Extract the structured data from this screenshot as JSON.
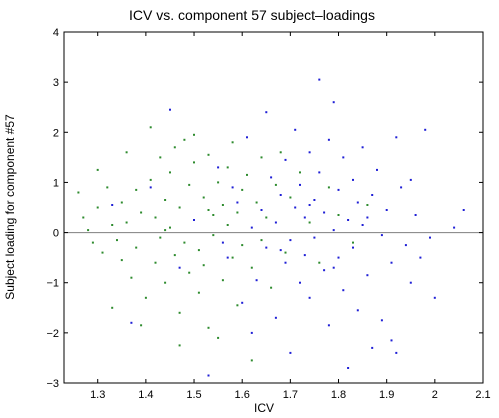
{
  "chart_data": {
    "type": "scatter",
    "title": "ICV vs. component 57 subject–loadings",
    "xlabel": "ICV",
    "ylabel": "Subject loading for component #57",
    "xlim": [
      1.23,
      2.1
    ],
    "ylim": [
      -3,
      4
    ],
    "xticks": [
      1.3,
      1.4,
      1.5,
      1.6,
      1.7,
      1.8,
      1.9,
      2.0,
      2.1
    ],
    "xtick_labels": [
      "1.3",
      "1.4",
      "1.5",
      "1.6",
      "1.7",
      "1.8",
      "1.9",
      "2",
      "2.1"
    ],
    "yticks": [
      -3,
      -2,
      -1,
      0,
      1,
      2,
      3,
      4
    ],
    "ytick_labels": [
      "−3",
      "−2",
      "−1",
      "0",
      "1",
      "2",
      "3",
      "4"
    ],
    "reference_line_y": 0,
    "grid": false,
    "colors": {
      "series_a": "#2e8b2e",
      "series_b": "#1f1fd6",
      "reference_line": "#7f7f7f",
      "axes": "#000000"
    },
    "series": [
      {
        "color": "#2e8b2e",
        "points": [
          [
            1.26,
            0.8
          ],
          [
            1.27,
            0.3
          ],
          [
            1.28,
            0.05
          ],
          [
            1.29,
            -0.2
          ],
          [
            1.3,
            1.25
          ],
          [
            1.3,
            0.5
          ],
          [
            1.31,
            -0.4
          ],
          [
            1.32,
            0.9
          ],
          [
            1.33,
            0.15
          ],
          [
            1.34,
            -0.15
          ],
          [
            1.35,
            0.6
          ],
          [
            1.35,
            -0.55
          ],
          [
            1.36,
            1.6
          ],
          [
            1.36,
            0.2
          ],
          [
            1.37,
            -0.9
          ],
          [
            1.38,
            0.85
          ],
          [
            1.38,
            -0.3
          ],
          [
            1.39,
            0.4
          ],
          [
            1.4,
            -1.3
          ],
          [
            1.41,
            1.05
          ],
          [
            1.41,
            2.1
          ],
          [
            1.42,
            0.3
          ],
          [
            1.42,
            -0.6
          ],
          [
            1.43,
            1.5
          ],
          [
            1.43,
            -0.1
          ],
          [
            1.44,
            0.65
          ],
          [
            1.44,
            -1.0
          ],
          [
            1.45,
            1.2
          ],
          [
            1.45,
            0.1
          ],
          [
            1.46,
            -0.45
          ],
          [
            1.46,
            1.7
          ],
          [
            1.47,
            0.5
          ],
          [
            1.47,
            -1.6
          ],
          [
            1.48,
            1.85
          ],
          [
            1.48,
            -0.2
          ],
          [
            1.49,
            0.95
          ],
          [
            1.49,
            -0.8
          ],
          [
            1.5,
            1.4
          ],
          [
            1.5,
            0.25
          ],
          [
            1.51,
            -0.35
          ],
          [
            1.51,
            -1.2
          ],
          [
            1.52,
            0.7
          ],
          [
            1.52,
            -0.65
          ],
          [
            1.53,
            1.55
          ],
          [
            1.53,
            -1.9
          ],
          [
            1.54,
            0.35
          ],
          [
            1.54,
            -0.05
          ],
          [
            1.55,
            1.0
          ],
          [
            1.55,
            -2.1
          ],
          [
            1.56,
            0.55
          ],
          [
            1.56,
            -0.95
          ],
          [
            1.57,
            1.3
          ],
          [
            1.57,
            0.15
          ],
          [
            1.58,
            -0.5
          ],
          [
            1.58,
            1.8
          ],
          [
            1.59,
            0.4
          ],
          [
            1.59,
            -1.45
          ],
          [
            1.6,
            0.85
          ],
          [
            1.6,
            -0.25
          ],
          [
            1.61,
            1.15
          ],
          [
            1.62,
            -0.7
          ],
          [
            1.62,
            -2.55
          ],
          [
            1.63,
            0.6
          ],
          [
            1.64,
            1.5
          ],
          [
            1.64,
            -0.15
          ],
          [
            1.65,
            0.3
          ],
          [
            1.66,
            -1.1
          ],
          [
            1.67,
            0.95
          ],
          [
            1.68,
            1.6
          ],
          [
            1.69,
            -0.4
          ],
          [
            1.7,
            0.7
          ],
          [
            1.72,
            1.2
          ],
          [
            1.74,
            0.2
          ],
          [
            1.76,
            -0.6
          ],
          [
            1.78,
            0.9
          ],
          [
            1.8,
            0.35
          ],
          [
            1.83,
            -0.2
          ],
          [
            1.86,
            0.55
          ],
          [
            1.33,
            -1.5
          ],
          [
            1.39,
            -1.85
          ],
          [
            1.47,
            -2.25
          ],
          [
            1.5,
            1.95
          ],
          [
            1.44,
            0.05
          ],
          [
            1.53,
            0.45
          ]
        ]
      },
      {
        "color": "#1f1fd6",
        "points": [
          [
            1.33,
            0.55
          ],
          [
            1.37,
            -1.8
          ],
          [
            1.41,
            0.9
          ],
          [
            1.45,
            2.45
          ],
          [
            1.47,
            -0.7
          ],
          [
            1.5,
            0.25
          ],
          [
            1.53,
            -2.85
          ],
          [
            1.55,
            1.3
          ],
          [
            1.57,
            -0.5
          ],
          [
            1.59,
            0.6
          ],
          [
            1.6,
            -1.4
          ],
          [
            1.61,
            1.9
          ],
          [
            1.62,
            0.1
          ],
          [
            1.63,
            -0.95
          ],
          [
            1.64,
            0.45
          ],
          [
            1.65,
            2.4
          ],
          [
            1.65,
            -0.3
          ],
          [
            1.66,
            1.1
          ],
          [
            1.67,
            -1.7
          ],
          [
            1.67,
            0.2
          ],
          [
            1.68,
            0.75
          ],
          [
            1.69,
            -0.6
          ],
          [
            1.69,
            1.45
          ],
          [
            1.7,
            -0.15
          ],
          [
            1.7,
            -2.4
          ],
          [
            1.71,
            0.5
          ],
          [
            1.71,
            2.05
          ],
          [
            1.72,
            -1.0
          ],
          [
            1.72,
            0.95
          ],
          [
            1.73,
            0.3
          ],
          [
            1.73,
            -0.45
          ],
          [
            1.74,
            1.6
          ],
          [
            1.74,
            -1.3
          ],
          [
            1.75,
            0.65
          ],
          [
            1.75,
            -0.1
          ],
          [
            1.76,
            3.05
          ],
          [
            1.76,
            1.2
          ],
          [
            1.77,
            -0.75
          ],
          [
            1.77,
            0.4
          ],
          [
            1.78,
            -1.85
          ],
          [
            1.78,
            1.85
          ],
          [
            1.79,
            0.05
          ],
          [
            1.79,
            2.6
          ],
          [
            1.8,
            -0.5
          ],
          [
            1.8,
            0.85
          ],
          [
            1.81,
            -1.15
          ],
          [
            1.81,
            1.5
          ],
          [
            1.82,
            0.25
          ],
          [
            1.82,
            -2.7
          ],
          [
            1.83,
            -0.3
          ],
          [
            1.83,
            1.05
          ],
          [
            1.84,
            0.6
          ],
          [
            1.84,
            -1.55
          ],
          [
            1.85,
            1.7
          ],
          [
            1.85,
            0.15
          ],
          [
            1.86,
            -0.85
          ],
          [
            1.87,
            0.75
          ],
          [
            1.87,
            -2.3
          ],
          [
            1.88,
            1.25
          ],
          [
            1.89,
            -0.05
          ],
          [
            1.89,
            -1.75
          ],
          [
            1.9,
            0.45
          ],
          [
            1.91,
            -0.6
          ],
          [
            1.92,
            1.9
          ],
          [
            1.92,
            -2.4
          ],
          [
            1.93,
            0.9
          ],
          [
            1.94,
            -0.25
          ],
          [
            1.95,
            1.05
          ],
          [
            1.95,
            -1.0
          ],
          [
            1.96,
            0.35
          ],
          [
            1.97,
            -0.5
          ],
          [
            1.98,
            2.05
          ],
          [
            1.99,
            -0.1
          ],
          [
            2.0,
            -1.3
          ],
          [
            2.04,
            0.1
          ],
          [
            2.06,
            0.45
          ],
          [
            1.56,
            -0.2
          ],
          [
            1.58,
            0.9
          ],
          [
            1.62,
            -2.0
          ],
          [
            1.68,
            -0.35
          ],
          [
            1.74,
            0.55
          ],
          [
            1.79,
            -0.7
          ],
          [
            1.86,
            0.3
          ],
          [
            1.91,
            -2.15
          ]
        ]
      }
    ]
  }
}
